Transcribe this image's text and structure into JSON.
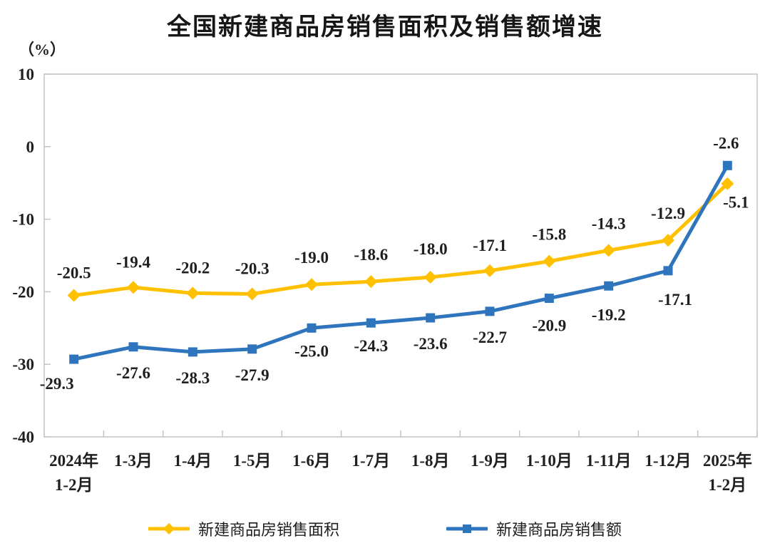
{
  "title": "全国新建商品房销售面积及销售额增速",
  "y_axis_unit": "（%）",
  "legend": {
    "items": [
      {
        "label": "新建商品房销售面积",
        "color": "#FFC000",
        "marker": "diamond"
      },
      {
        "label": "新建商品房销售额",
        "color": "#2E75BE",
        "marker": "square"
      }
    ]
  },
  "colors": {
    "sales_area_series": "#FFC000",
    "sales_value_series": "#2E75BE",
    "axis_line": "#C4C4C4",
    "label_text": "#1F1F1F"
  },
  "chart_data": {
    "type": "line",
    "title": "全国新建商品房销售面积及销售额增速",
    "ylabel": "（%）",
    "categories": [
      "2024年\n1-2月",
      "1-3月",
      "1-4月",
      "1-5月",
      "1-6月",
      "1-7月",
      "1-8月",
      "1-9月",
      "1-10月",
      "1-11月",
      "1-12月",
      "2025年\n1-2月"
    ],
    "series": [
      {
        "name": "新建商品房销售面积",
        "color": "#FFC000",
        "marker": "diamond",
        "values": [
          -20.5,
          -19.4,
          -20.2,
          -20.3,
          -19.0,
          -18.6,
          -18.0,
          -17.1,
          -15.8,
          -14.3,
          -12.9,
          -5.1
        ],
        "label_offsets": [
          [
            0,
            -24
          ],
          [
            0,
            -28
          ],
          [
            0,
            -28
          ],
          [
            0,
            -28
          ],
          [
            0,
            -30
          ],
          [
            0,
            -30
          ],
          [
            0,
            -32
          ],
          [
            0,
            -28
          ],
          [
            0,
            -30
          ],
          [
            0,
            -30
          ],
          [
            0,
            -30
          ],
          [
            12,
            34
          ]
        ]
      },
      {
        "name": "新建商品房销售额",
        "color": "#2E75BE",
        "marker": "square",
        "values": [
          -29.3,
          -27.6,
          -28.3,
          -27.9,
          -25.0,
          -24.3,
          -23.6,
          -22.7,
          -20.9,
          -19.2,
          -17.1,
          -2.6
        ],
        "label_offsets": [
          [
            -24,
            42
          ],
          [
            0,
            44
          ],
          [
            0,
            44
          ],
          [
            0,
            44
          ],
          [
            0,
            40
          ],
          [
            0,
            40
          ],
          [
            0,
            44
          ],
          [
            0,
            44
          ],
          [
            0,
            46
          ],
          [
            0,
            48
          ],
          [
            10,
            48
          ],
          [
            -2,
            -24
          ]
        ]
      }
    ],
    "ylim": [
      -40,
      10
    ],
    "yticks": [
      10,
      0,
      -10,
      -20,
      -30,
      -40
    ],
    "grid": false,
    "legend_position": "bottom",
    "value_format": "one_decimal"
  }
}
